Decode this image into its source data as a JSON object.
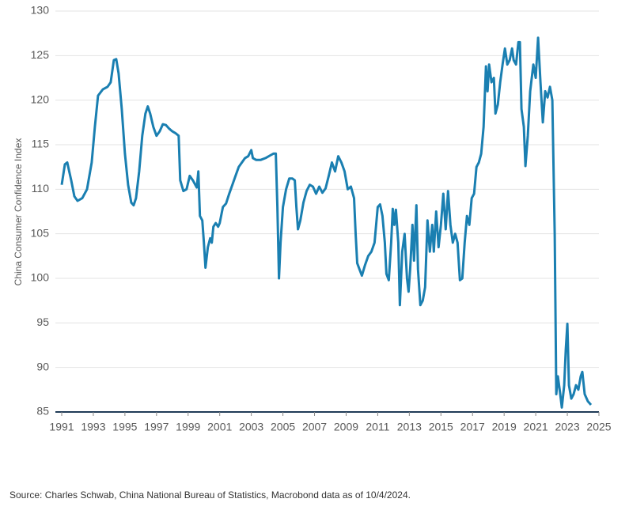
{
  "chart_data": {
    "type": "line",
    "y_label": "China Consumer Confidence Index",
    "source": "Source: Charles Schwab, China National Bureau of Statistics, Macrobond data as of 10/4/2024.",
    "color": "#1a7fb1",
    "grid": true,
    "xlim": [
      1991,
      2025
    ],
    "xticks": [
      1991,
      1993,
      1995,
      1997,
      1999,
      2001,
      2003,
      2005,
      2007,
      2009,
      2011,
      2013,
      2015,
      2017,
      2019,
      2021,
      2023,
      2025
    ],
    "ylim": [
      85,
      130
    ],
    "yticks": [
      85,
      90,
      95,
      100,
      105,
      110,
      115,
      120,
      125,
      130
    ],
    "x": [
      1991.0,
      1991.2,
      1991.35,
      1991.6,
      1991.8,
      1992.0,
      1992.3,
      1992.6,
      1992.9,
      1993.1,
      1993.3,
      1993.6,
      1993.9,
      1994.1,
      1994.3,
      1994.45,
      1994.6,
      1994.8,
      1995.0,
      1995.2,
      1995.4,
      1995.55,
      1995.7,
      1995.9,
      1996.1,
      1996.3,
      1996.45,
      1996.6,
      1996.8,
      1997.0,
      1997.2,
      1997.4,
      1997.6,
      1997.8,
      1998.0,
      1998.2,
      1998.4,
      1998.5,
      1998.7,
      1998.9,
      1999.1,
      1999.3,
      1999.45,
      1999.55,
      1999.65,
      1999.75,
      1999.9,
      2000.0,
      2000.1,
      2000.25,
      2000.4,
      2000.5,
      2000.6,
      2000.75,
      2000.9,
      2001.0,
      2001.2,
      2001.4,
      2001.6,
      2001.8,
      2002.0,
      2002.2,
      2002.4,
      2002.6,
      2002.8,
      2003.0,
      2003.1,
      2003.3,
      2003.6,
      2003.9,
      2004.2,
      2004.4,
      2004.55,
      2004.65,
      2004.75,
      2004.85,
      2005.0,
      2005.2,
      2005.4,
      2005.6,
      2005.75,
      2005.85,
      2005.95,
      2006.1,
      2006.3,
      2006.5,
      2006.7,
      2006.9,
      2007.1,
      2007.3,
      2007.5,
      2007.7,
      2007.9,
      2008.1,
      2008.3,
      2008.5,
      2008.7,
      2008.9,
      2009.1,
      2009.3,
      2009.5,
      2009.6,
      2009.7,
      2009.85,
      2010.0,
      2010.2,
      2010.4,
      2010.6,
      2010.8,
      2010.9,
      2011.0,
      2011.15,
      2011.3,
      2011.45,
      2011.55,
      2011.7,
      2011.85,
      2011.95,
      2012.05,
      2012.15,
      2012.3,
      2012.4,
      2012.55,
      2012.7,
      2012.85,
      2012.95,
      2013.05,
      2013.2,
      2013.3,
      2013.45,
      2013.55,
      2013.7,
      2013.85,
      2014.0,
      2014.15,
      2014.3,
      2014.45,
      2014.55,
      2014.7,
      2014.85,
      2015.0,
      2015.15,
      2015.3,
      2015.45,
      2015.6,
      2015.75,
      2015.9,
      2016.05,
      2016.2,
      2016.35,
      2016.5,
      2016.65,
      2016.8,
      2016.95,
      2017.1,
      2017.25,
      2017.4,
      2017.55,
      2017.7,
      2017.85,
      2017.95,
      2018.05,
      2018.2,
      2018.35,
      2018.45,
      2018.6,
      2018.75,
      2018.9,
      2019.05,
      2019.2,
      2019.35,
      2019.5,
      2019.6,
      2019.75,
      2019.9,
      2020.0,
      2020.1,
      2020.25,
      2020.35,
      2020.5,
      2020.65,
      2020.85,
      2021.0,
      2021.15,
      2021.3,
      2021.45,
      2021.6,
      2021.75,
      2021.9,
      2022.05,
      2022.2,
      2022.3,
      2022.4,
      2022.55,
      2022.65,
      2022.8,
      2022.9,
      2023.0,
      2023.1,
      2023.25,
      2023.4,
      2023.55,
      2023.7,
      2023.85,
      2023.95,
      2024.1,
      2024.3,
      2024.5
    ],
    "values": [
      110.5,
      112.8,
      113,
      111,
      109.2,
      108.7,
      109,
      110,
      113,
      117,
      120.5,
      121.2,
      121.5,
      122,
      124.5,
      124.6,
      123,
      119,
      114,
      110.5,
      108.5,
      108.2,
      109,
      112,
      116,
      118.5,
      119.3,
      118.5,
      117,
      116,
      116.5,
      117.3,
      117.2,
      116.8,
      116.5,
      116.3,
      116,
      111,
      109.8,
      110,
      111.5,
      111,
      110.5,
      110.2,
      112,
      107,
      106.5,
      104,
      101.2,
      103.5,
      104.5,
      104,
      105.8,
      106.2,
      105.8,
      106.2,
      108,
      108.4,
      109.5,
      110.5,
      111.5,
      112.5,
      113,
      113.5,
      113.7,
      114.4,
      113.5,
      113.3,
      113.3,
      113.5,
      113.8,
      114,
      114,
      108,
      100,
      104,
      108,
      110,
      111.2,
      111.2,
      111,
      108,
      105.5,
      106.5,
      108.5,
      109.8,
      110.5,
      110.3,
      109.5,
      110.3,
      109.6,
      110.1,
      111.5,
      113,
      112,
      113.7,
      113,
      112,
      110,
      110.3,
      109,
      105,
      101.7,
      101,
      100.3,
      101.5,
      102.5,
      103,
      104,
      106,
      108,
      108.3,
      107,
      104,
      100.5,
      99.8,
      104,
      107.8,
      106,
      107.7,
      104,
      97,
      103,
      105,
      100,
      98.5,
      101,
      106,
      102,
      108.2,
      101,
      97,
      97.5,
      99,
      106.5,
      103,
      106,
      103,
      107.5,
      103.5,
      106,
      109.5,
      105.5,
      109.8,
      106,
      104,
      105,
      104,
      99.8,
      100,
      104,
      107,
      106,
      109,
      109.5,
      112.5,
      113,
      114,
      117,
      123.8,
      121,
      124,
      122,
      122.5,
      118.5,
      119.5,
      122,
      124,
      125.8,
      124,
      124.5,
      125.8,
      124.5,
      124,
      126.5,
      126.5,
      119,
      117,
      112.6,
      116,
      121,
      124,
      122.5,
      127,
      122,
      117.5,
      121,
      120.3,
      121.5,
      120,
      105,
      87,
      89,
      87,
      85.5,
      88,
      92,
      94.9,
      88,
      86.5,
      87,
      88,
      87.5,
      89,
      89.5,
      87,
      86.2,
      85.8
    ]
  }
}
